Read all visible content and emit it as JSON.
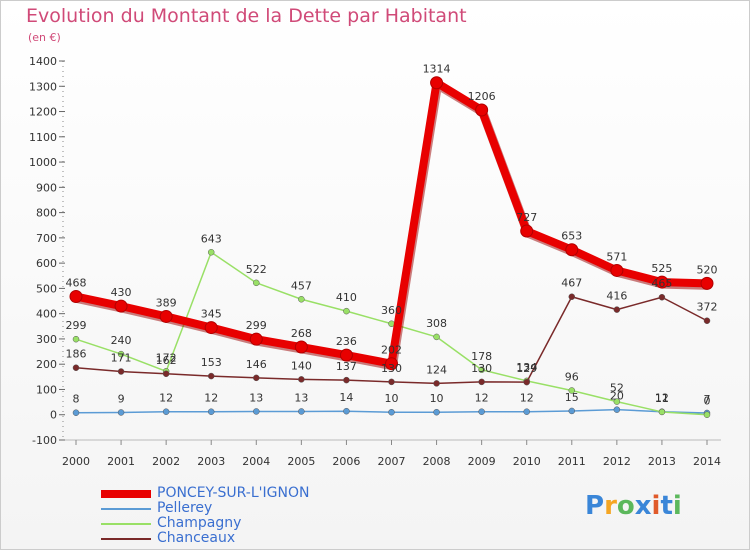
{
  "header": {
    "title": "Evolution du Montant de la Dette par Habitant",
    "unit": "(en €)"
  },
  "logo": {
    "text": "Proxiti",
    "colors": [
      "#3a86d8",
      "#f5a623",
      "#5cb85c",
      "#3a86d8",
      "#e05a2a",
      "#3a86d8",
      "#5cb85c"
    ]
  },
  "chart_data": {
    "type": "line",
    "x": [
      "2000",
      "2001",
      "2002",
      "2003",
      "2004",
      "2005",
      "2006",
      "2007",
      "2008",
      "2009",
      "2010",
      "2011",
      "2012",
      "2013",
      "2014"
    ],
    "ylim": [
      -100,
      1400
    ],
    "yticks": [
      "-100",
      "0",
      "100",
      "200",
      "300",
      "400",
      "500",
      "600",
      "700",
      "800",
      "900",
      "1000",
      "1100",
      "1200",
      "1300",
      "1400"
    ],
    "grid": false,
    "legend": "bottom-left",
    "series": [
      {
        "name": "PONCEY-SUR-L'IGNON",
        "color": "#e80000",
        "values": [
          468,
          430,
          389,
          345,
          299,
          268,
          236,
          202,
          1314,
          1206,
          727,
          653,
          571,
          525,
          520
        ],
        "labels": [
          "468",
          "430",
          "389",
          "345",
          "299",
          "268",
          "236",
          "202",
          "1314",
          "1206",
          "727",
          "653",
          "571",
          "525",
          "520"
        ]
      },
      {
        "name": "Pellerey",
        "color": "#5b9bd5",
        "values": [
          8,
          9,
          12,
          12,
          13,
          13,
          14,
          10,
          10,
          12,
          12,
          15,
          20,
          12,
          7
        ],
        "labels": [
          "8",
          "9",
          "12",
          "12",
          "13",
          "13",
          "14",
          "10",
          "10",
          "12",
          "12",
          "15",
          "20",
          "12",
          "7"
        ]
      },
      {
        "name": "Champagny",
        "color": "#99e066",
        "values": [
          299,
          240,
          172,
          643,
          522,
          457,
          410,
          360,
          308,
          178,
          134,
          96,
          52,
          11,
          0
        ],
        "labels": [
          "299",
          "240",
          "172",
          "643",
          "522",
          "457",
          "410",
          "360",
          "308",
          "178",
          "134",
          "96",
          "52",
          "11",
          "0"
        ]
      },
      {
        "name": "Chanceaux",
        "color": "#7a2a2a",
        "values": [
          186,
          171,
          162,
          153,
          146,
          140,
          137,
          130,
          124,
          130,
          129,
          467,
          416,
          465,
          372
        ],
        "labels": [
          "186",
          "171",
          "162",
          "153",
          "146",
          "140",
          "137",
          "130",
          "124",
          "130",
          "129",
          "467",
          "416",
          "465",
          "372"
        ]
      }
    ]
  }
}
